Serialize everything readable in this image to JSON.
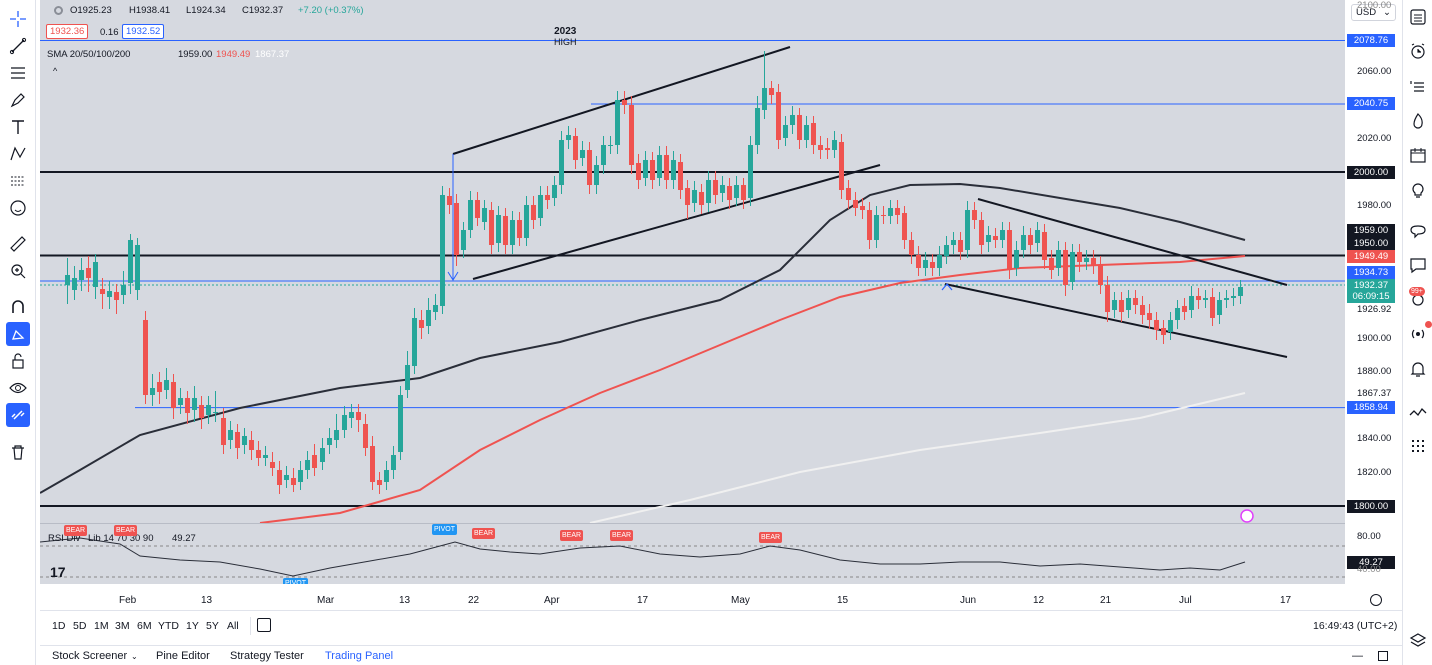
{
  "ohlc": {
    "open": "O1925.23",
    "high": "H1938.41",
    "low": "L1924.34",
    "close": "C1932.37",
    "change": "+7.20 (+0.37%)"
  },
  "bid_ask": {
    "bid": "1932.36",
    "spread": "0.16",
    "ask": "1932.52"
  },
  "sma": {
    "label": "SMA 20/50/100/200",
    "v1": "1959.00",
    "v2": "1949.49",
    "v3": "1867.37"
  },
  "annotation": {
    "line1": "2023",
    "line2": "HIGH"
  },
  "currency": "USD",
  "price_scale": {
    "ticks": [
      "2060.00",
      "2020.00",
      "1980.00",
      "1926.92",
      "1900.00",
      "1880.00",
      "1840.00",
      "1820.00"
    ],
    "labels": {
      "l2078": "2078.76",
      "l2040": "2040.75",
      "l2000": "2000.00",
      "l1959": "1959.00",
      "l1950": "1950.00",
      "l1949": "1949.49",
      "l1934": "1934.73",
      "l1932": "1932.37",
      "countdown": "06:09:15",
      "l1867": "1867.37",
      "l1858": "1858.94",
      "l1800": "1800.00"
    },
    "top": "2100.00"
  },
  "rsi": {
    "label": "RSI Div",
    "params": "Lib 14 70 30 90",
    "value": "49.27",
    "scale_top": "80.00",
    "scale_bot": "40.00",
    "badge_bear": "BEAR",
    "badge_pivot": "PIVOT"
  },
  "time_axis": [
    "Feb",
    "13",
    "Mar",
    "13",
    "22",
    "Apr",
    "17",
    "May",
    "15",
    "Jun",
    "12",
    "21",
    "Jul",
    "17"
  ],
  "timeframes": [
    "1D",
    "5D",
    "1M",
    "3M",
    "6M",
    "YTD",
    "1Y",
    "5Y",
    "All"
  ],
  "clock": "16:49:43 (UTC+2)",
  "footer": {
    "screener": "Stock Screener",
    "pine": "Pine Editor",
    "strategy": "Strategy Tester",
    "trading": "Trading Panel"
  },
  "notif_badge": "99+",
  "colors": {
    "up": "#26a69a",
    "down": "#ef5350",
    "blue": "#2962ff",
    "black": "#131722"
  }
}
